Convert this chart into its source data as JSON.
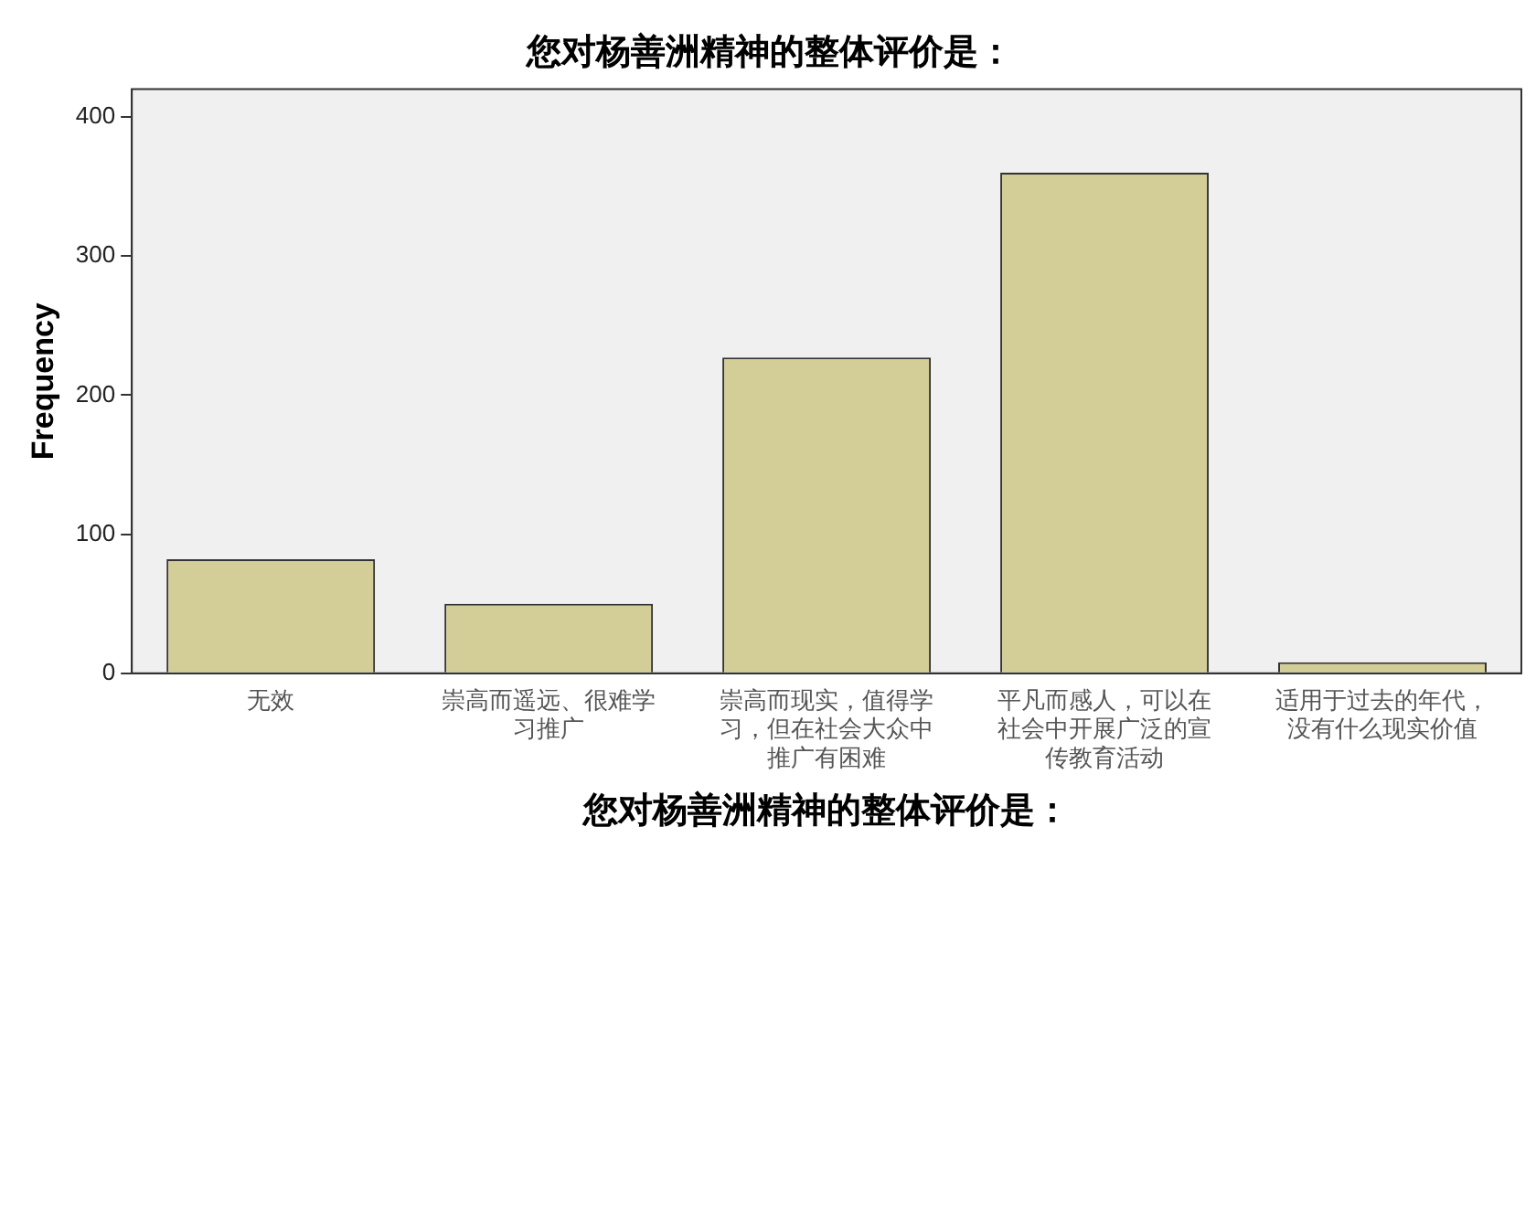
{
  "chart_data": {
    "type": "bar",
    "title": "您对杨善洲精神的整体评价是：",
    "xlabel": "您对杨善洲精神的整体评价是：",
    "ylabel": "Frequency",
    "categories": [
      "无效",
      "崇高而遥远、很难学习推广",
      "崇高而现实，值得学习，但在社会大众中推广有困难",
      "平凡而感人，可以在社会中开展广泛的宣传教育活动",
      "适用于过去的年代，没有什么现实价值"
    ],
    "values": [
      82,
      50,
      227,
      360,
      8
    ],
    "color": "#d3cd98",
    "ylim": [
      0,
      420
    ],
    "yticks": [
      0,
      100,
      200,
      300,
      400
    ],
    "grid": false,
    "legend": false
  }
}
